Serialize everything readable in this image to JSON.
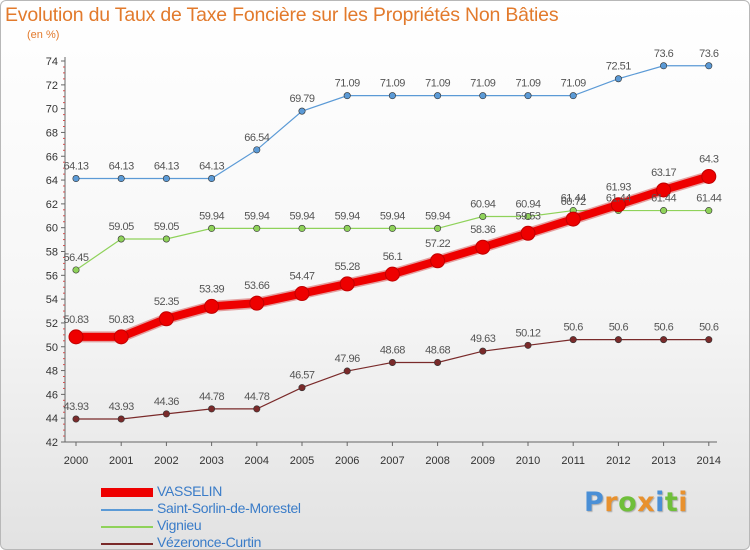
{
  "title": "Evolution du Taux de Taxe Foncière sur les Propriétés Non Bâties",
  "subtitle": "(en %)",
  "logo": {
    "letters": [
      "P",
      "r",
      "o",
      "x",
      "i",
      "t",
      "i"
    ],
    "colors": [
      "#4a8fd6",
      "#e8912e",
      "#6fbf3a",
      "#e8912e",
      "#4a8fd6",
      "#6fbf3a",
      "#e8912e"
    ]
  },
  "chart_data": {
    "type": "line",
    "x": [
      "2000",
      "2001",
      "2002",
      "2003",
      "2004",
      "2005",
      "2006",
      "2007",
      "2008",
      "2009",
      "2010",
      "2011",
      "2012",
      "2013",
      "2014"
    ],
    "ylim": [
      42,
      74
    ],
    "yticks": [
      42,
      44,
      46,
      48,
      50,
      52,
      54,
      56,
      58,
      60,
      62,
      64,
      66,
      68,
      70,
      72,
      74
    ],
    "grid": false,
    "legend_position": "bottom-left",
    "series": [
      {
        "name": "VASSELIN",
        "color": "#ee0000",
        "emphasis": true,
        "values": [
          50.83,
          50.83,
          52.35,
          53.39,
          53.66,
          54.47,
          55.28,
          56.1,
          57.22,
          58.36,
          59.53,
          60.72,
          61.93,
          63.17,
          64.3
        ],
        "labels": [
          "50.83",
          "50.83",
          "52.35",
          "53.39",
          "53.66",
          "54.47",
          "55.28",
          "56.1",
          "57.22",
          "58.36",
          "59.53",
          "60.72",
          "61.93",
          "63.17",
          "64.3"
        ]
      },
      {
        "name": "Saint-Sorlin-de-Morestel",
        "color": "#5b9ad6",
        "values": [
          64.13,
          64.13,
          64.13,
          64.13,
          66.54,
          69.79,
          71.09,
          71.09,
          71.09,
          71.09,
          71.09,
          71.09,
          72.51,
          73.6,
          73.6
        ],
        "labels": [
          "64.13",
          "64.13",
          "64.13",
          "64.13",
          "66.54",
          "69.79",
          "71.09",
          "71.09",
          "71.09",
          "71.09",
          "71.09",
          "71.09",
          "72.51",
          "73.6",
          "73.6"
        ]
      },
      {
        "name": "Vignieu",
        "color": "#8fd25a",
        "values": [
          56.45,
          59.05,
          59.05,
          59.94,
          59.94,
          59.94,
          59.94,
          59.94,
          59.94,
          60.94,
          60.94,
          61.44,
          61.44,
          61.44,
          61.44
        ],
        "labels": [
          "56.45",
          "59.05",
          "59.05",
          "59.94",
          "59.94",
          "59.94",
          "59.94",
          "59.94",
          "59.94",
          "60.94",
          "60.94",
          "61.44",
          "61.44",
          "61.44",
          "61.44"
        ]
      },
      {
        "name": "Vézeronce-Curtin",
        "color": "#7a2a2a",
        "values": [
          43.93,
          43.93,
          44.36,
          44.78,
          44.78,
          46.57,
          47.96,
          48.68,
          48.68,
          49.63,
          50.12,
          50.6,
          50.6,
          50.6,
          50.6
        ],
        "labels": [
          "43.93",
          "43.93",
          "44.36",
          "44.78",
          "44.78",
          "46.57",
          "47.96",
          "48.68",
          "48.68",
          "49.63",
          "50.12",
          "50.6",
          "50.6",
          "50.6",
          "50.6"
        ]
      }
    ]
  }
}
